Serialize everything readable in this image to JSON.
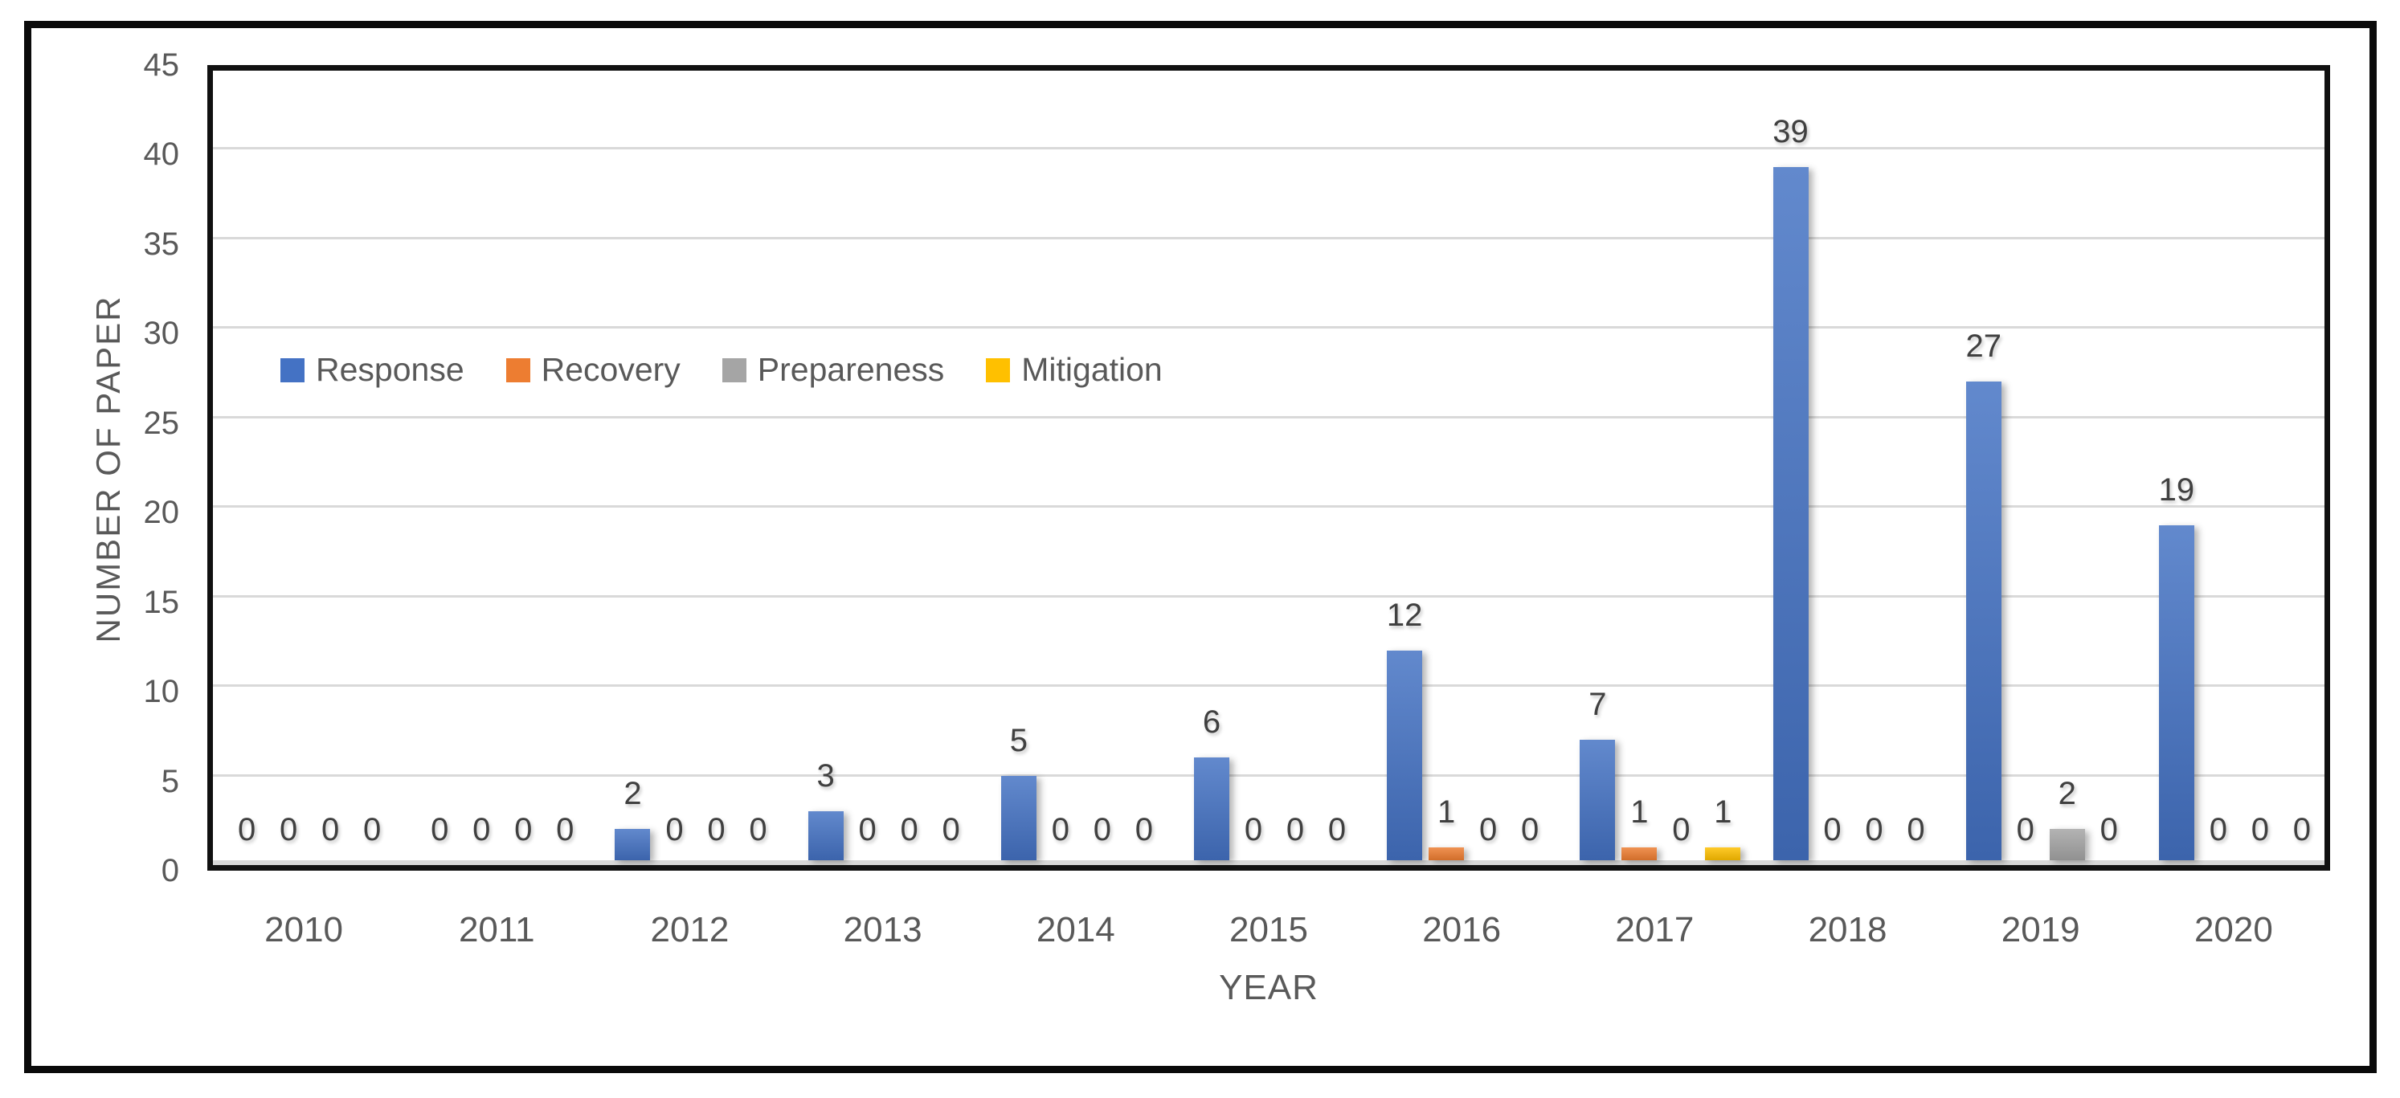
{
  "chart_data": {
    "type": "bar",
    "title": "",
    "xlabel": "YEAR",
    "ylabel": "NUMBER OF PAPER",
    "categories": [
      "2010",
      "2011",
      "2012",
      "2013",
      "2014",
      "2015",
      "2016",
      "2017",
      "2018",
      "2019",
      "2020"
    ],
    "series": [
      {
        "name": "Response",
        "color": "#4472C4",
        "values": [
          0,
          0,
          2,
          3,
          5,
          6,
          12,
          7,
          39,
          27,
          19
        ]
      },
      {
        "name": "Recovery",
        "color": "#ED7D31",
        "values": [
          0,
          0,
          0,
          0,
          0,
          0,
          1,
          1,
          0,
          0,
          0
        ]
      },
      {
        "name": "Prepareness",
        "color": "#A5A5A5",
        "values": [
          0,
          0,
          0,
          0,
          0,
          0,
          0,
          0,
          0,
          2,
          0
        ]
      },
      {
        "name": "Mitigation",
        "color": "#FFC000",
        "values": [
          0,
          0,
          0,
          0,
          0,
          0,
          0,
          1,
          0,
          0,
          0
        ]
      }
    ],
    "ylim": [
      0,
      45
    ],
    "ytick_step": 5,
    "yticks": [
      "0",
      "5",
      "10",
      "15",
      "20",
      "25",
      "30",
      "35",
      "40",
      "45"
    ],
    "grid": true,
    "data_labels": true,
    "legend_position": "inside-upper-left",
    "colors": {
      "gridline": "#d9d9d9",
      "axis_text": "#595959",
      "label_text": "#404040",
      "plot_border": "#111111"
    }
  }
}
